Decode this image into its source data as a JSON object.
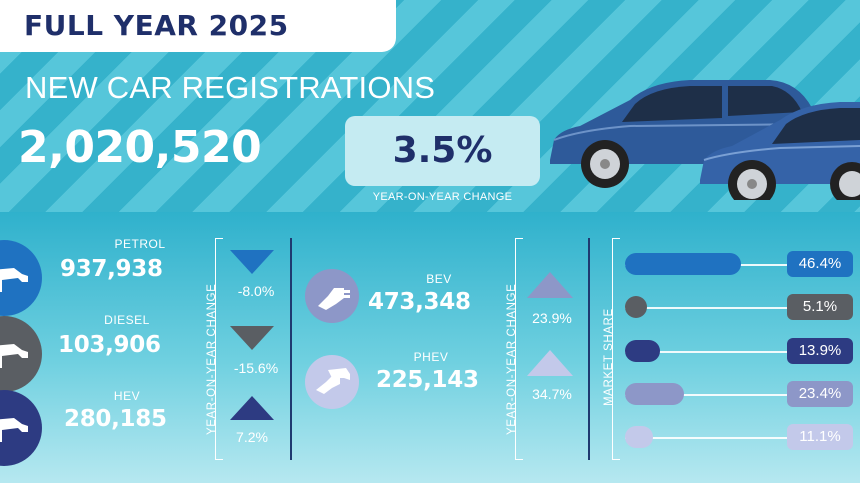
{
  "header": {
    "title": "FULL YEAR 2025",
    "subtitle": "NEW CAR REGISTRATIONS",
    "total": "2,020,520",
    "yoy_change": "3.5%",
    "yoy_label": "YEAR-ON-YEAR CHANGE"
  },
  "labels": {
    "yoy_vertical": "YEAR-ON-YEAR CHANGE",
    "market_share": "MARKET SHARE"
  },
  "fuels": [
    {
      "name": "PETROL",
      "value": "937,938",
      "change": "-8.0%",
      "direction": "down",
      "share": "46.4%",
      "share_value": 46.4,
      "color": "#1f72c1"
    },
    {
      "name": "DIESEL",
      "value": "103,906",
      "change": "-15.6%",
      "direction": "down",
      "share": "5.1%",
      "share_value": 5.1,
      "color": "#5a5e63"
    },
    {
      "name": "HEV",
      "value": "280,185",
      "change": "7.2%",
      "direction": "up",
      "share": "13.9%",
      "share_value": 13.9,
      "color": "#2d3b82"
    },
    {
      "name": "BEV",
      "value": "473,348",
      "change": "23.9%",
      "direction": "up",
      "share": "23.4%",
      "share_value": 23.4,
      "color": "#8d97c8"
    },
    {
      "name": "PHEV",
      "value": "225,143",
      "change": "34.7%",
      "direction": "up",
      "share": "11.1%",
      "share_value": 11.1,
      "color": "#c3c9ea"
    }
  ],
  "icons": {
    "petrol": "fuel-pump-icon",
    "diesel": "fuel-pump-icon",
    "hev": "fuel-pump-icon",
    "bev": "ev-plug-icon",
    "phev": "plug-and-pump-icon",
    "car": "car-icon"
  },
  "colors": {
    "navy": "#1f2f6a",
    "cyan": "#35b2cb"
  }
}
